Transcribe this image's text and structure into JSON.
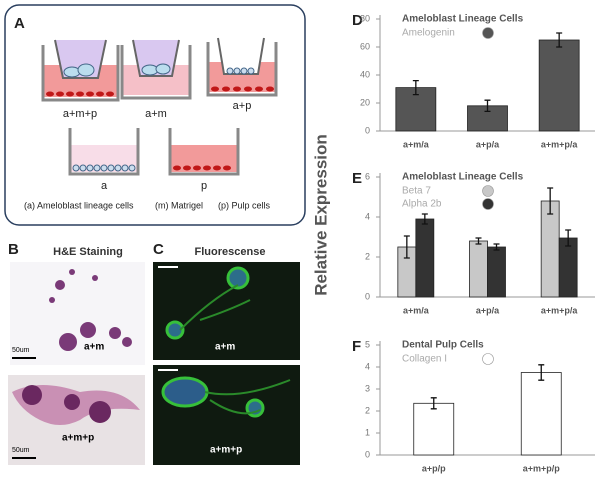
{
  "panel_labels": [
    "A",
    "B",
    "C"
  ],
  "panel_a": {
    "wells": [
      "a+m+p",
      "a+m",
      "a+p",
      "a",
      "p"
    ],
    "caption": [
      "(a) Ameloblast lineage cells",
      "(m) Matrigel",
      "(p) Pulp cells"
    ]
  },
  "panel_b": {
    "title": "H&E Staining",
    "images": [
      {
        "label": "a+m",
        "scale": "50um"
      },
      {
        "label": "a+m+p",
        "scale": "50um"
      }
    ]
  },
  "panel_c": {
    "title": "Fluorescense",
    "images": [
      {
        "label": "a+m"
      },
      {
        "label": "a+m+p"
      }
    ]
  },
  "shared_ylabel": "Relative  Expression",
  "chart_data": [
    {
      "panel": "D",
      "type": "bar",
      "title": "Ameloblast Lineage Cells",
      "categories": [
        "a+m/a",
        "a+p/a",
        "a+m+p/a"
      ],
      "series": [
        {
          "name": "Amelogenin",
          "color": "#555555",
          "values": [
            31,
            18,
            65
          ],
          "errors": [
            5,
            4,
            5
          ]
        }
      ],
      "ylim": [
        0,
        80
      ],
      "yticks": [
        0,
        20,
        40,
        60,
        80
      ]
    },
    {
      "panel": "E",
      "type": "bar",
      "title": "Ameloblast Lineage Cells",
      "categories": [
        "a+m/a",
        "a+p/a",
        "a+m+p/a"
      ],
      "series": [
        {
          "name": "Beta 7",
          "color": "#c8c8c8",
          "values": [
            2.5,
            2.8,
            4.8
          ],
          "errors": [
            0.55,
            0.15,
            0.65
          ]
        },
        {
          "name": "Alpha 2b",
          "color": "#333333",
          "values": [
            3.9,
            2.5,
            2.95
          ],
          "errors": [
            0.25,
            0.15,
            0.4
          ]
        }
      ],
      "ylim": [
        0,
        6
      ],
      "yticks": [
        0,
        2,
        4,
        6
      ]
    },
    {
      "panel": "F",
      "type": "bar",
      "title": "Dental Pulp Cells",
      "categories": [
        "a+p/p",
        "a+m+p/p"
      ],
      "series": [
        {
          "name": "Collagen I",
          "color": "#ffffff",
          "values": [
            2.35,
            3.75
          ],
          "errors": [
            0.25,
            0.35
          ]
        }
      ],
      "ylim": [
        0,
        5
      ],
      "yticks": [
        0,
        1,
        2,
        3,
        4,
        5
      ]
    }
  ]
}
